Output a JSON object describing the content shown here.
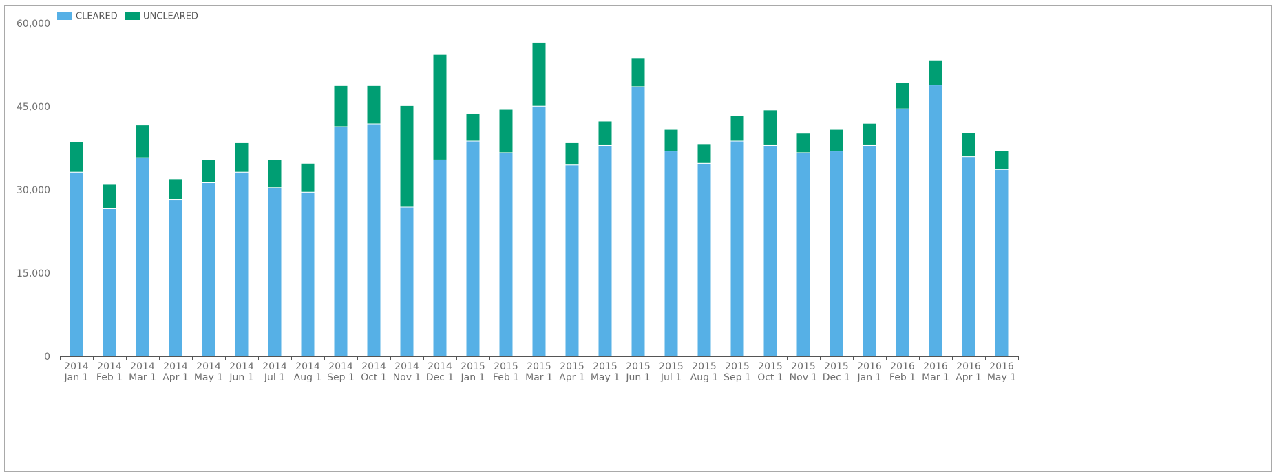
{
  "chart_data": {
    "type": "bar",
    "stacked": true,
    "categories": [
      [
        "2014",
        "Jan 1"
      ],
      [
        "2014",
        "Feb 1"
      ],
      [
        "2014",
        "Mar 1"
      ],
      [
        "2014",
        "Apr 1"
      ],
      [
        "2014",
        "May 1"
      ],
      [
        "2014",
        "Jun 1"
      ],
      [
        "2014",
        "Jul 1"
      ],
      [
        "2014",
        "Aug 1"
      ],
      [
        "2014",
        "Sep 1"
      ],
      [
        "2014",
        "Oct 1"
      ],
      [
        "2014",
        "Nov 1"
      ],
      [
        "2014",
        "Dec 1"
      ],
      [
        "2015",
        "Jan 1"
      ],
      [
        "2015",
        "Feb 1"
      ],
      [
        "2015",
        "Mar 1"
      ],
      [
        "2015",
        "Apr 1"
      ],
      [
        "2015",
        "May 1"
      ],
      [
        "2015",
        "Jun 1"
      ],
      [
        "2015",
        "Jul 1"
      ],
      [
        "2015",
        "Aug 1"
      ],
      [
        "2015",
        "Sep 1"
      ],
      [
        "2015",
        "Oct 1"
      ],
      [
        "2015",
        "Nov 1"
      ],
      [
        "2015",
        "Dec 1"
      ],
      [
        "2016",
        "Jan 1"
      ],
      [
        "2016",
        "Feb 1"
      ],
      [
        "2016",
        "Mar 1"
      ],
      [
        "2016",
        "Apr 1"
      ],
      [
        "2016",
        "May 1"
      ]
    ],
    "series": [
      {
        "name": "CLEARED",
        "color": "#56b0e6",
        "values": [
          33200,
          26600,
          35800,
          28200,
          31300,
          33200,
          30400,
          29600,
          41400,
          41900,
          26900,
          35400,
          38800,
          36700,
          45100,
          34500,
          38000,
          48600,
          37000,
          34800,
          38800,
          38000,
          36700,
          37000,
          38000,
          44600,
          48900,
          36000,
          33700
        ]
      },
      {
        "name": "UNCLEARED",
        "color": "#009e73",
        "values": [
          5500,
          4400,
          5900,
          3800,
          4200,
          5300,
          5000,
          5200,
          7400,
          6900,
          18300,
          19000,
          4900,
          7800,
          11500,
          4000,
          4400,
          5100,
          3900,
          3400,
          4600,
          6400,
          3500,
          3900,
          4000,
          4700,
          4500,
          4300,
          3400
        ]
      }
    ],
    "ylim": [
      0,
      60000
    ],
    "yticks": [
      0,
      15000,
      30000,
      45000,
      60000
    ],
    "ytick_labels": [
      "0",
      "15,000",
      "30,000",
      "45,000",
      "60,000"
    ],
    "title": "",
    "xlabel": "",
    "ylabel": "",
    "legend_position": "top-left",
    "grid": false
  }
}
